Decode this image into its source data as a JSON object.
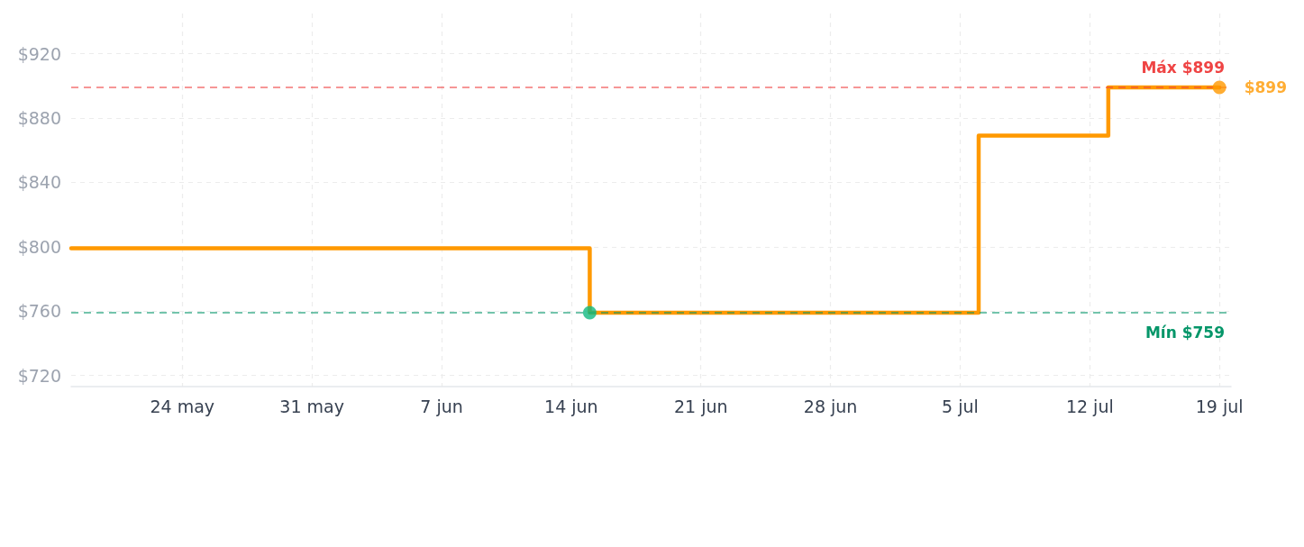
{
  "chart_data": {
    "type": "step",
    "x": [
      "--05-18",
      "--06-15",
      "--07-06",
      "--07-13",
      "--07-19"
    ],
    "xlim": [
      "--05-18",
      "--07-19T15:00"
    ],
    "xticks": [
      {
        "value": "--05-24",
        "label": "24 may"
      },
      {
        "value": "--05-31",
        "label": "31 may"
      },
      {
        "value": "--06-07",
        "label": "7 jun"
      },
      {
        "value": "--06-14",
        "label": "14 jun"
      },
      {
        "value": "--06-21",
        "label": "21 jun"
      },
      {
        "value": "--06-28",
        "label": "28 jun"
      },
      {
        "value": "--07-05",
        "label": "5 jul"
      },
      {
        "value": "--07-12",
        "label": "12 jul"
      },
      {
        "value": "--07-19",
        "label": "19 jul"
      }
    ],
    "ylim": [
      713,
      945
    ],
    "yticks": [
      {
        "value": 720,
        "label": "$720"
      },
      {
        "value": 760,
        "label": "$760"
      },
      {
        "value": 800,
        "label": "$800"
      },
      {
        "value": 840,
        "label": "$840"
      },
      {
        "value": 880,
        "label": "$880"
      },
      {
        "value": 920,
        "label": "$920"
      }
    ],
    "grid": true,
    "marker": "none",
    "line_style": "solid",
    "series": [
      {
        "color": "#ff9900",
        "values": [
          799,
          759,
          869,
          899,
          899
        ]
      },
      {
        "type": "scatter",
        "x": [
          "--06-15"
        ],
        "values": [
          759
        ],
        "color": "#10b981",
        "marker": "circle"
      },
      {
        "type": "scatter",
        "x": [
          "--07-19"
        ],
        "values": [
          899
        ],
        "color": "#ff9900",
        "marker": "circle",
        "value_labels": [
          "$899"
        ]
      }
    ],
    "ref_lines": [
      {
        "axis": "y",
        "value": 899,
        "label": "Máx $899",
        "color": "#ef4444",
        "line_style": "dashed"
      },
      {
        "axis": "y",
        "value": 759,
        "label": "Mín $759",
        "color": "#059669",
        "line_style": "dashed"
      }
    ]
  }
}
